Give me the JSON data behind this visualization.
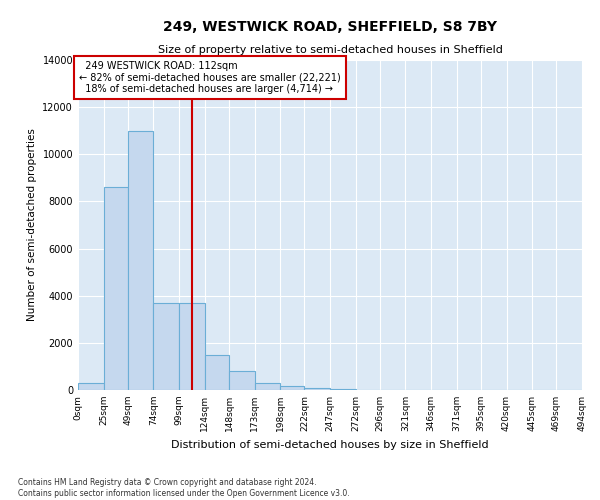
{
  "title": "249, WESTWICK ROAD, SHEFFIELD, S8 7BY",
  "subtitle": "Size of property relative to semi-detached houses in Sheffield",
  "xlabel": "Distribution of semi-detached houses by size in Sheffield",
  "ylabel": "Number of semi-detached properties",
  "property_size": 112,
  "property_label": "249 WESTWICK ROAD: 112sqm",
  "pct_smaller": 82,
  "n_smaller": 22221,
  "pct_larger": 18,
  "n_larger": 4714,
  "bin_edges": [
    0,
    25,
    49,
    74,
    99,
    124,
    148,
    173,
    198,
    222,
    247,
    272,
    296,
    321,
    346,
    371,
    395,
    420,
    445,
    469,
    494
  ],
  "bin_labels": [
    "0sqm",
    "25sqm",
    "49sqm",
    "74sqm",
    "99sqm",
    "124sqm",
    "148sqm",
    "173sqm",
    "198sqm",
    "222sqm",
    "247sqm",
    "272sqm",
    "296sqm",
    "321sqm",
    "346sqm",
    "371sqm",
    "395sqm",
    "420sqm",
    "445sqm",
    "469sqm",
    "494sqm"
  ],
  "bar_heights": [
    300,
    8600,
    11000,
    3700,
    3700,
    1500,
    800,
    300,
    150,
    100,
    30,
    0,
    0,
    0,
    0,
    0,
    0,
    0,
    0,
    0
  ],
  "bar_color": "#c5d8ee",
  "bar_edge_color": "#6baed6",
  "vline_color": "#cc0000",
  "annotation_box_edgecolor": "#cc0000",
  "bg_color": "#dce9f5",
  "grid_color": "#ffffff",
  "ylim_max": 14000,
  "footnote_line1": "Contains HM Land Registry data © Crown copyright and database right 2024.",
  "footnote_line2": "Contains public sector information licensed under the Open Government Licence v3.0."
}
